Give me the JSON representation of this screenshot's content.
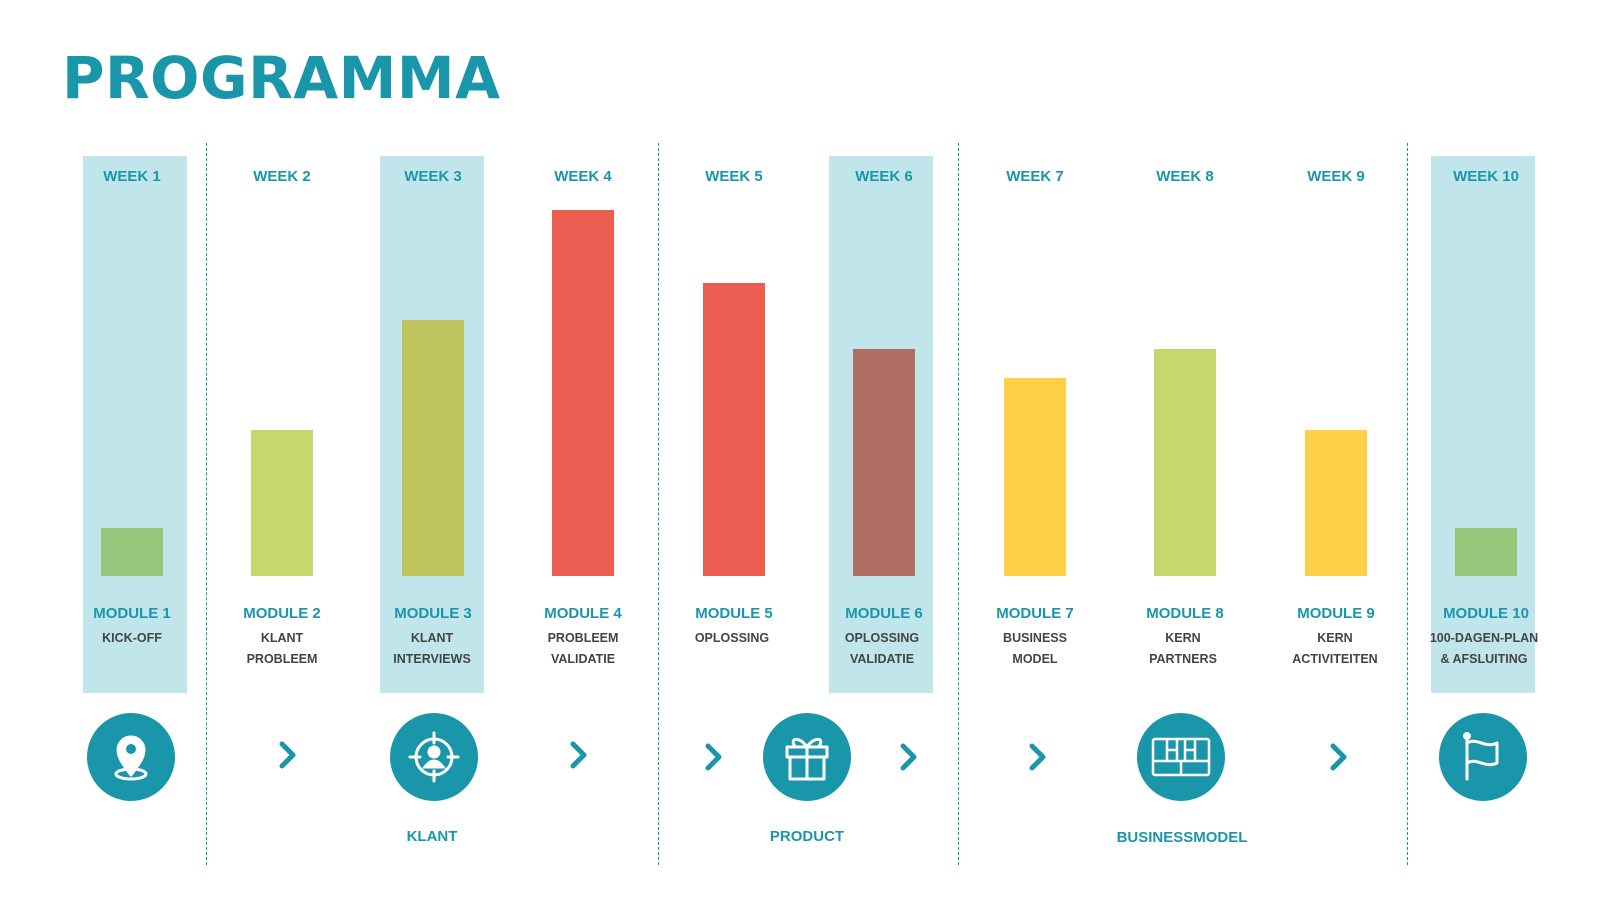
{
  "title": "PROGRAMMA",
  "colors": {
    "accent": "#1a96aa",
    "highlight": "#c0e5eb",
    "subtext": "#444444"
  },
  "chart_data": {
    "type": "bar",
    "categories": [
      "WEEK 1",
      "WEEK 2",
      "WEEK 3",
      "WEEK 4",
      "WEEK 5",
      "WEEK 6",
      "WEEK 7",
      "WEEK 8",
      "WEEK 9",
      "WEEK 10"
    ],
    "values": [
      13,
      40,
      70,
      100,
      80,
      62,
      54,
      62,
      40,
      13
    ],
    "bar_colors": [
      "#95c77b",
      "#c5d86d",
      "#bec35e",
      "#ea5d50",
      "#ea5d50",
      "#b06e63",
      "#ffd047",
      "#c5d86d",
      "#ffd047",
      "#95c77b"
    ],
    "highlighted_weeks": [
      1,
      3,
      6,
      10
    ],
    "modules": [
      {
        "label": "MODULE 1",
        "sub1": "KICK-OFF",
        "sub2": ""
      },
      {
        "label": "MODULE 2",
        "sub1": "KLANT",
        "sub2": "PROBLEEM"
      },
      {
        "label": "MODULE 3",
        "sub1": "KLANT",
        "sub2": "INTERVIEWS"
      },
      {
        "label": "MODULE 4",
        "sub1": "PROBLEEM",
        "sub2": "VALIDATIE"
      },
      {
        "label": "MODULE 5",
        "sub1": "OPLOSSING",
        "sub2": ""
      },
      {
        "label": "MODULE 6",
        "sub1": "OPLOSSING",
        "sub2": "VALIDATIE"
      },
      {
        "label": "MODULE 7",
        "sub1": "BUSINESS",
        "sub2": "MODEL"
      },
      {
        "label": "MODULE 8",
        "sub1": "KERN",
        "sub2": "PARTNERS"
      },
      {
        "label": "MODULE 9",
        "sub1": "KERN",
        "sub2": "ACTIVITEITEN"
      },
      {
        "label": "MODULE 10",
        "sub1": "100-DAGEN-PLAN",
        "sub2": "& AFSLUITING"
      }
    ]
  },
  "groups": [
    "KLANT",
    "PRODUCT",
    "BUSINESSMODEL"
  ],
  "icons": [
    "location-pin-icon",
    "target-person-icon",
    "gift-icon",
    "grid-board-icon",
    "flag-icon"
  ]
}
